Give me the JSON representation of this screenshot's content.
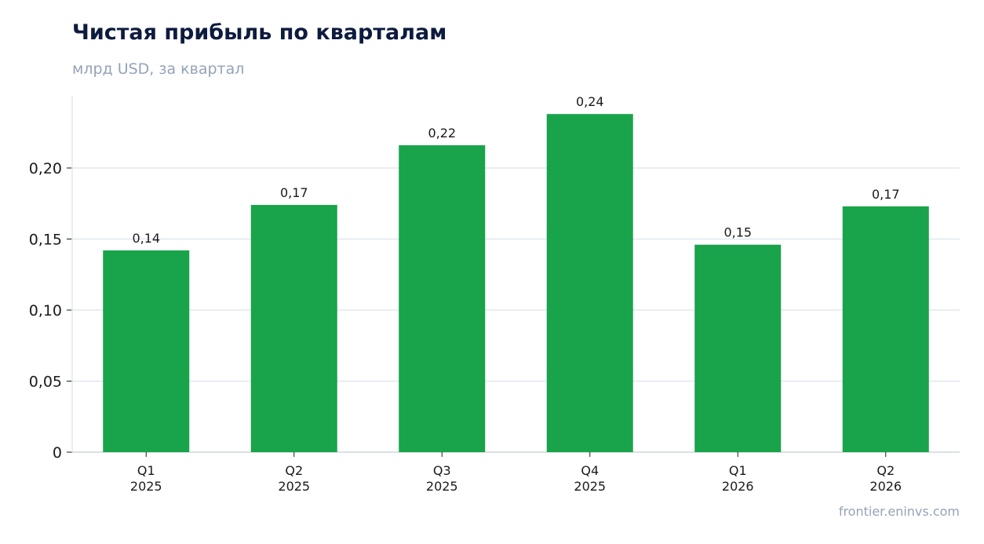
{
  "header": {
    "title": "Чистая прибыль по кварталам",
    "subtitle": "млрд USD, за квартал"
  },
  "footer": {
    "source": "frontier.eninvs.com"
  },
  "colors": {
    "bar": "#19a34a",
    "title": "#0d1b3e",
    "muted": "#94a3b8",
    "grid": "#e2e8f0",
    "axis": "#d1d5db",
    "text": "#1a1a1a"
  },
  "chart_data": {
    "type": "bar",
    "title": "Чистая прибыль по кварталам",
    "subtitle": "млрд USD, за квартал",
    "categories": [
      [
        "Q1",
        "2025"
      ],
      [
        "Q2",
        "2025"
      ],
      [
        "Q3",
        "2025"
      ],
      [
        "Q4",
        "2025"
      ],
      [
        "Q1",
        "2026"
      ],
      [
        "Q2",
        "2026"
      ]
    ],
    "values": [
      0.142,
      0.174,
      0.216,
      0.238,
      0.146,
      0.173
    ],
    "data_labels": [
      "0,14",
      "0,17",
      "0,22",
      "0,24",
      "0,15",
      "0,17"
    ],
    "yticks": [
      0,
      0.05,
      0.1,
      0.15,
      0.2
    ],
    "ytick_labels": [
      "0",
      "0,05",
      "0,10",
      "0,15",
      "0,20"
    ],
    "ylim": [
      0,
      0.25
    ],
    "xlabel": "",
    "ylabel": "",
    "grid": true
  }
}
